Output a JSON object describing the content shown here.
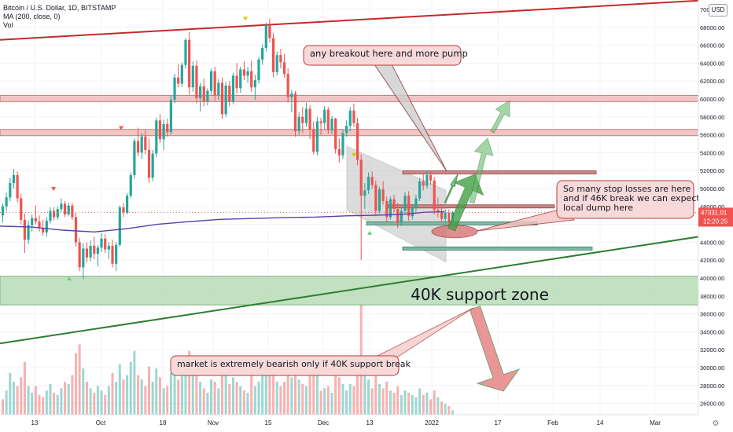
{
  "header": {
    "symbol_line": "Bitcoin / U.S. Dollar, 1D, BITSTAMP",
    "ma_line": "MA (200, close, 0)",
    "vol_line": "Vol",
    "currency_button": "USD"
  },
  "price_tags": {
    "last_price": "47331.01",
    "countdown": "12:20:25",
    "last_price_color": "#ef5350"
  },
  "annotations": {
    "pump_note": "any breakout here and more pump",
    "stop_loss_note": "So many stop losses are here\nand if 46K break we can expect\nlocal dump here",
    "support_label": "40K support zone",
    "bearish_note": "market is extremely bearish only if 40K support break"
  },
  "colors": {
    "up": "#26a69a",
    "down": "#ef5350",
    "ma": "#5b3fa8",
    "resistance_zone": "#f0b8b8",
    "support_zone": "#b8dcb6",
    "trend_red": "#c62828",
    "trend_green": "#2e7d32"
  },
  "chart_data": {
    "type": "candlestick",
    "symbol": "Bitcoin / U.S. Dollar",
    "interval": "1D",
    "exchange": "BITSTAMP",
    "y_axis": {
      "range": [
        24500,
        71500
      ],
      "ticks": [
        26000,
        28000,
        30000,
        32000,
        34000,
        36000,
        38000,
        40000,
        42000,
        44000,
        46000,
        48000,
        50000,
        52000,
        54000,
        56000,
        58000,
        60000,
        62000,
        64000,
        66000,
        68000,
        70000
      ],
      "tick_labels": [
        "26000.00",
        "28000.00",
        "30000.00",
        "32000.00",
        "34000.00",
        "36000.00",
        "38000.00",
        "40000.00",
        "42000.00",
        "44000.00",
        "46000.00",
        "48000.00",
        "50000.00",
        "52000.00",
        "54000.00",
        "56000.00",
        "58000.00",
        "60000.00",
        "62000.00",
        "64000.00",
        "66000.00",
        "68000.00",
        "70000.00"
      ]
    },
    "x_axis": {
      "tick_labels": [
        "13",
        "Oct",
        "18",
        "Nov",
        "15",
        "Dec",
        "13",
        "2022",
        "17",
        "Feb",
        "14",
        "Mar"
      ]
    },
    "moving_average": {
      "name": "MA (200, close, 0)",
      "points": [
        [
          0,
          45800
        ],
        [
          40,
          45700
        ],
        [
          80,
          45350
        ],
        [
          120,
          45150
        ],
        [
          160,
          45500
        ],
        [
          200,
          46000
        ],
        [
          240,
          46300
        ],
        [
          280,
          46550
        ],
        [
          320,
          46650
        ],
        [
          360,
          46750
        ],
        [
          400,
          46800
        ],
        [
          440,
          46950
        ],
        [
          470,
          47000
        ],
        [
          490,
          47050
        ],
        [
          510,
          47100
        ],
        [
          540,
          47350
        ],
        [
          565,
          47400
        ]
      ]
    },
    "zones": [
      {
        "type": "resistance",
        "from": 59700,
        "to": 60400
      },
      {
        "type": "resistance",
        "from": 55900,
        "to": 56600
      },
      {
        "type": "support",
        "from": 37000,
        "to": 40200,
        "label": "40K support zone"
      }
    ],
    "levels": [
      {
        "price": 51800,
        "x": [
          512,
          758
        ]
      },
      {
        "price": 48000,
        "x": [
          493,
          705
        ]
      },
      {
        "price": 46100,
        "x": [
          466,
          683
        ]
      },
      {
        "price": 43300,
        "x": [
          512,
          753
        ]
      }
    ],
    "trendlines": [
      {
        "color": "red",
        "from": [
          0,
          66600
        ],
        "to": [
          932,
          71200
        ]
      },
      {
        "color": "green",
        "from": [
          0,
          32700
        ],
        "to": [
          932,
          45200
        ]
      }
    ],
    "candles": [
      [
        47000,
        48300,
        46200,
        48000
      ],
      [
        48000,
        49500,
        47500,
        49000
      ],
      [
        49000,
        51200,
        48600,
        50600
      ],
      [
        50600,
        52200,
        50000,
        51500
      ],
      [
        51500,
        51900,
        48500,
        48900
      ],
      [
        48900,
        49400,
        46000,
        46500
      ],
      [
        46500,
        47200,
        42800,
        44300
      ],
      [
        44300,
        46400,
        43800,
        45900
      ],
      [
        45900,
        47100,
        45200,
        46700
      ],
      [
        46700,
        48100,
        46000,
        46300
      ],
      [
        46300,
        47000,
        45200,
        45600
      ],
      [
        45600,
        46500,
        44700,
        45100
      ],
      [
        45100,
        46800,
        44600,
        46400
      ],
      [
        46400,
        47900,
        46100,
        47500
      ],
      [
        47500,
        47900,
        46400,
        46800
      ],
      [
        46800,
        48000,
        46500,
        47700
      ],
      [
        47700,
        48900,
        47400,
        48300
      ],
      [
        48300,
        48600,
        46800,
        47100
      ],
      [
        47100,
        48400,
        46900,
        48100
      ],
      [
        48100,
        48400,
        46500,
        46800
      ],
      [
        46800,
        47300,
        43500,
        44000
      ],
      [
        44000,
        44500,
        40800,
        41200
      ],
      [
        41200,
        43900,
        39900,
        43300
      ],
      [
        43300,
        44000,
        41800,
        42300
      ],
      [
        42300,
        44200,
        41900,
        43600
      ],
      [
        43600,
        44600,
        42100,
        42700
      ],
      [
        42700,
        43700,
        41300,
        43400
      ],
      [
        43400,
        45000,
        42900,
        44400
      ],
      [
        44400,
        44900,
        42800,
        43200
      ],
      [
        43200,
        44000,
        42100,
        43600
      ],
      [
        43600,
        44300,
        41200,
        41600
      ],
      [
        41600,
        44000,
        40800,
        43700
      ],
      [
        43700,
        48100,
        43500,
        47900
      ],
      [
        47900,
        48400,
        46800,
        47300
      ],
      [
        47300,
        49500,
        47100,
        49200
      ],
      [
        49200,
        51800,
        48900,
        51500
      ],
      [
        51500,
        55600,
        51100,
        55300
      ],
      [
        55300,
        56800,
        53600,
        54000
      ],
      [
        54000,
        56200,
        53300,
        55800
      ],
      [
        55800,
        56500,
        53800,
        54300
      ],
      [
        54300,
        55600,
        50600,
        51200
      ],
      [
        51200,
        54300,
        50800,
        53900
      ],
      [
        53900,
        57900,
        53500,
        57600
      ],
      [
        57600,
        58300,
        55100,
        55500
      ],
      [
        55500,
        57700,
        54300,
        57200
      ],
      [
        57200,
        57800,
        55800,
        56300
      ],
      [
        56300,
        60400,
        56000,
        59900
      ],
      [
        59900,
        62800,
        59500,
        62400
      ],
      [
        62400,
        63900,
        61300,
        61700
      ],
      [
        61700,
        64100,
        61300,
        63800
      ],
      [
        63800,
        66800,
        63400,
        66600
      ],
      [
        66600,
        67500,
        60500,
        61300
      ],
      [
        61300,
        64200,
        60800,
        63700
      ],
      [
        63700,
        64300,
        59500,
        60100
      ],
      [
        60100,
        61800,
        58600,
        61400
      ],
      [
        61400,
        62300,
        59200,
        59700
      ],
      [
        59700,
        61200,
        59300,
        60900
      ],
      [
        60900,
        63400,
        60400,
        63100
      ],
      [
        63100,
        63600,
        59800,
        60400
      ],
      [
        60400,
        62200,
        59900,
        61800
      ],
      [
        61800,
        62400,
        57800,
        58300
      ],
      [
        58300,
        61900,
        58000,
        61500
      ],
      [
        61500,
        62000,
        59200,
        59700
      ],
      [
        59700,
        62900,
        59400,
        62600
      ],
      [
        62600,
        64000,
        60600,
        61200
      ],
      [
        61200,
        63600,
        60700,
        63300
      ],
      [
        63300,
        64200,
        62100,
        62600
      ],
      [
        62600,
        63600,
        61800,
        63100
      ],
      [
        63100,
        64300,
        60800,
        61300
      ],
      [
        61300,
        62700,
        59900,
        62100
      ],
      [
        62100,
        64700,
        61700,
        64400
      ],
      [
        64400,
        66100,
        63800,
        65700
      ],
      [
        65700,
        68500,
        65300,
        68200
      ],
      [
        68200,
        69000,
        66300,
        66800
      ],
      [
        66800,
        67400,
        62400,
        63000
      ],
      [
        63000,
        65300,
        62600,
        64900
      ],
      [
        64900,
        65600,
        63400,
        64100
      ],
      [
        64100,
        65000,
        62400,
        62800
      ],
      [
        62800,
        63400,
        59600,
        60200
      ],
      [
        60200,
        61000,
        58500,
        60600
      ],
      [
        60600,
        60900,
        55800,
        56400
      ],
      [
        56400,
        58500,
        56000,
        58000
      ],
      [
        58000,
        59100,
        56200,
        57300
      ],
      [
        57300,
        59600,
        56900,
        58900
      ],
      [
        58900,
        59300,
        55500,
        56600
      ],
      [
        56600,
        57500,
        53800,
        54100
      ],
      [
        54100,
        58000,
        53700,
        57500
      ],
      [
        57500,
        57900,
        56000,
        57300
      ],
      [
        57300,
        59200,
        56600,
        58800
      ],
      [
        58800,
        59100,
        56100,
        56500
      ],
      [
        56500,
        58100,
        56100,
        57800
      ],
      [
        57800,
        57900,
        53900,
        54400
      ],
      [
        54400,
        55600,
        52900,
        53700
      ],
      [
        53700,
        56600,
        53300,
        56200
      ],
      [
        56200,
        57600,
        55800,
        57000
      ],
      [
        57000,
        59100,
        56400,
        58700
      ],
      [
        58700,
        59500,
        56900,
        57300
      ],
      [
        57300,
        57900,
        52600,
        53200
      ],
      [
        53200,
        53800,
        42000,
        49200
      ],
      [
        49200,
        50600,
        47700,
        49800
      ],
      [
        49800,
        51800,
        49400,
        51300
      ],
      [
        51300,
        51900,
        50000,
        50400
      ],
      [
        50400,
        50900,
        46900,
        47500
      ],
      [
        47500,
        50200,
        47200,
        49900
      ],
      [
        49900,
        50800,
        48200,
        48600
      ],
      [
        48600,
        49100,
        46200,
        46800
      ],
      [
        46800,
        49100,
        46500,
        48800
      ],
      [
        48800,
        49300,
        47300,
        47700
      ],
      [
        47700,
        48400,
        45600,
        46200
      ],
      [
        46200,
        47900,
        45800,
        47500
      ],
      [
        47500,
        49600,
        47100,
        49200
      ],
      [
        49200,
        49700,
        46400,
        46900
      ],
      [
        46900,
        48300,
        46500,
        47800
      ],
      [
        47800,
        49300,
        47400,
        48900
      ],
      [
        48900,
        51200,
        48600,
        50800
      ],
      [
        50800,
        51600,
        49800,
        50300
      ],
      [
        50300,
        52000,
        50000,
        51500
      ],
      [
        51500,
        51900,
        50400,
        50900
      ],
      [
        50900,
        51300,
        47100,
        47600
      ],
      [
        47600,
        49000,
        46800,
        47400
      ],
      [
        47400,
        48100,
        46200,
        46600
      ],
      [
        46600,
        47600,
        46100,
        47300
      ],
      [
        47300,
        47700,
        45800,
        46300
      ],
      [
        46300,
        47500,
        46000,
        47331
      ]
    ],
    "volume_scale_max": 100,
    "volumes": [
      [
        14,
        0
      ],
      [
        22,
        1
      ],
      [
        38,
        1
      ],
      [
        30,
        1
      ],
      [
        26,
        0
      ],
      [
        34,
        0
      ],
      [
        48,
        0
      ],
      [
        26,
        1
      ],
      [
        20,
        1
      ],
      [
        26,
        0
      ],
      [
        18,
        0
      ],
      [
        16,
        0
      ],
      [
        22,
        1
      ],
      [
        28,
        1
      ],
      [
        20,
        0
      ],
      [
        18,
        1
      ],
      [
        24,
        1
      ],
      [
        30,
        0
      ],
      [
        28,
        1
      ],
      [
        36,
        0
      ],
      [
        56,
        0
      ],
      [
        64,
        0
      ],
      [
        42,
        1
      ],
      [
        30,
        0
      ],
      [
        24,
        1
      ],
      [
        20,
        0
      ],
      [
        26,
        1
      ],
      [
        22,
        1
      ],
      [
        18,
        0
      ],
      [
        26,
        1
      ],
      [
        38,
        0
      ],
      [
        30,
        1
      ],
      [
        46,
        1
      ],
      [
        32,
        0
      ],
      [
        36,
        1
      ],
      [
        48,
        1
      ],
      [
        58,
        1
      ],
      [
        36,
        0
      ],
      [
        32,
        1
      ],
      [
        26,
        0
      ],
      [
        44,
        0
      ],
      [
        30,
        1
      ],
      [
        42,
        1
      ],
      [
        34,
        0
      ],
      [
        24,
        1
      ],
      [
        26,
        0
      ],
      [
        38,
        1
      ],
      [
        44,
        1
      ],
      [
        32,
        0
      ],
      [
        36,
        1
      ],
      [
        42,
        1
      ],
      [
        58,
        0
      ],
      [
        36,
        1
      ],
      [
        46,
        0
      ],
      [
        30,
        1
      ],
      [
        24,
        0
      ],
      [
        20,
        1
      ],
      [
        32,
        1
      ],
      [
        30,
        0
      ],
      [
        24,
        1
      ],
      [
        46,
        0
      ],
      [
        40,
        1
      ],
      [
        28,
        0
      ],
      [
        34,
        1
      ],
      [
        30,
        0
      ],
      [
        26,
        1
      ],
      [
        22,
        0
      ],
      [
        20,
        1
      ],
      [
        36,
        0
      ],
      [
        26,
        1
      ],
      [
        30,
        1
      ],
      [
        40,
        1
      ],
      [
        54,
        1
      ],
      [
        38,
        0
      ],
      [
        48,
        0
      ],
      [
        30,
        1
      ],
      [
        26,
        0
      ],
      [
        30,
        0
      ],
      [
        44,
        0
      ],
      [
        34,
        1
      ],
      [
        50,
        0
      ],
      [
        32,
        1
      ],
      [
        28,
        0
      ],
      [
        26,
        1
      ],
      [
        36,
        0
      ],
      [
        42,
        0
      ],
      [
        38,
        1
      ],
      [
        22,
        0
      ],
      [
        24,
        1
      ],
      [
        26,
        0
      ],
      [
        20,
        1
      ],
      [
        38,
        0
      ],
      [
        34,
        0
      ],
      [
        28,
        1
      ],
      [
        22,
        1
      ],
      [
        28,
        1
      ],
      [
        26,
        0
      ],
      [
        42,
        0
      ],
      [
        100,
        0
      ],
      [
        46,
        1
      ],
      [
        32,
        1
      ],
      [
        24,
        0
      ],
      [
        36,
        0
      ],
      [
        28,
        1
      ],
      [
        24,
        0
      ],
      [
        30,
        0
      ],
      [
        22,
        1
      ],
      [
        20,
        0
      ],
      [
        26,
        0
      ],
      [
        18,
        1
      ],
      [
        22,
        1
      ],
      [
        20,
        0
      ],
      [
        18,
        1
      ],
      [
        16,
        1
      ],
      [
        24,
        1
      ],
      [
        18,
        0
      ],
      [
        20,
        1
      ],
      [
        14,
        0
      ],
      [
        22,
        0
      ],
      [
        16,
        1
      ],
      [
        12,
        0
      ],
      [
        10,
        1
      ],
      [
        8,
        0
      ],
      [
        4,
        1
      ]
    ]
  }
}
